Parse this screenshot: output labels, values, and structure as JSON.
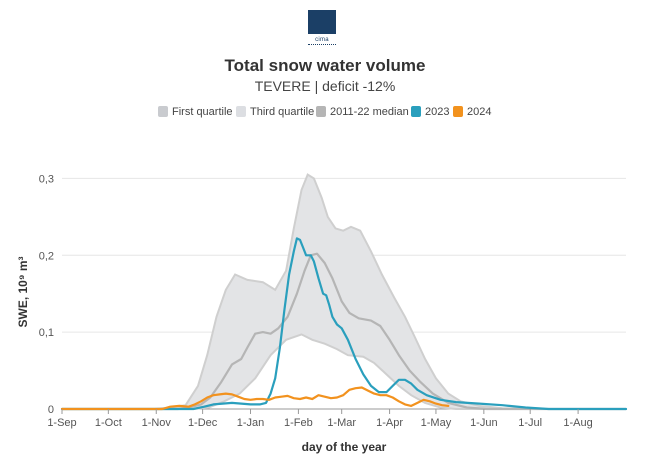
{
  "logo": {
    "text": "cima",
    "subtext": "RESEARCH FOUNDATION"
  },
  "chart_data": {
    "type": "area",
    "title": "Total snow water volume",
    "subtitle": "TEVERE | deficit -12%",
    "xlabel": "day of the year",
    "ylabel": "SWE, 10⁹ m³",
    "ylim": [
      0,
      0.35
    ],
    "xlim": [
      0,
      365
    ],
    "y_ticks": [
      {
        "value": 0,
        "label": "0"
      },
      {
        "value": 0.1,
        "label": "0,1"
      },
      {
        "value": 0.2,
        "label": "0,2"
      },
      {
        "value": 0.3,
        "label": "0,3"
      }
    ],
    "x_ticks": [
      {
        "day": 0,
        "label": "1-Sep"
      },
      {
        "day": 30,
        "label": "1-Oct"
      },
      {
        "day": 61,
        "label": "1-Nov"
      },
      {
        "day": 91,
        "label": "1-Dec"
      },
      {
        "day": 122,
        "label": "1-Jan"
      },
      {
        "day": 153,
        "label": "1-Feb"
      },
      {
        "day": 181,
        "label": "1-Mar"
      },
      {
        "day": 212,
        "label": "1-Apr"
      },
      {
        "day": 242,
        "label": "1-May"
      },
      {
        "day": 273,
        "label": "1-Jun"
      },
      {
        "day": 303,
        "label": "1-Jul"
      },
      {
        "day": 334,
        "label": "1-Aug"
      }
    ],
    "legend": [
      {
        "key": "q1",
        "label": "First quartile",
        "color": "#c9cbcf"
      },
      {
        "key": "q3",
        "label": "Third quartile",
        "color": "#dcdee2"
      },
      {
        "key": "median",
        "label": "2011-22 median",
        "color": "#b5b5b5"
      },
      {
        "key": "y2023",
        "label": "2023",
        "color": "#2a9fbd"
      },
      {
        "key": "y2024",
        "label": "2024",
        "color": "#f2921e"
      }
    ],
    "series": [
      {
        "key": "q3",
        "name": "Third quartile",
        "color": "#cccccc",
        "points": [
          [
            0,
            0
          ],
          [
            60,
            0
          ],
          [
            70,
            0.002
          ],
          [
            80,
            0.005
          ],
          [
            88,
            0.03
          ],
          [
            94,
            0.07
          ],
          [
            100,
            0.12
          ],
          [
            106,
            0.155
          ],
          [
            112,
            0.175
          ],
          [
            120,
            0.168
          ],
          [
            130,
            0.165
          ],
          [
            138,
            0.155
          ],
          [
            145,
            0.18
          ],
          [
            150,
            0.235
          ],
          [
            155,
            0.285
          ],
          [
            159,
            0.305
          ],
          [
            163,
            0.3
          ],
          [
            168,
            0.275
          ],
          [
            172,
            0.25
          ],
          [
            177,
            0.235
          ],
          [
            182,
            0.232
          ],
          [
            187,
            0.237
          ],
          [
            193,
            0.232
          ],
          [
            200,
            0.205
          ],
          [
            207,
            0.175
          ],
          [
            215,
            0.145
          ],
          [
            222,
            0.12
          ],
          [
            228,
            0.095
          ],
          [
            235,
            0.065
          ],
          [
            242,
            0.04
          ],
          [
            250,
            0.02
          ],
          [
            258,
            0.01
          ],
          [
            270,
            0.004
          ],
          [
            285,
            0.001
          ],
          [
            300,
            0
          ],
          [
            365,
            0
          ]
        ]
      },
      {
        "key": "q1",
        "name": "First quartile",
        "color": "#cccccc",
        "points": [
          [
            0,
            0
          ],
          [
            85,
            0
          ],
          [
            95,
            0.002
          ],
          [
            105,
            0.01
          ],
          [
            115,
            0.02
          ],
          [
            125,
            0.04
          ],
          [
            135,
            0.07
          ],
          [
            145,
            0.09
          ],
          [
            155,
            0.097
          ],
          [
            162,
            0.09
          ],
          [
            170,
            0.085
          ],
          [
            178,
            0.078
          ],
          [
            185,
            0.07
          ],
          [
            195,
            0.068
          ],
          [
            202,
            0.06
          ],
          [
            210,
            0.045
          ],
          [
            218,
            0.03
          ],
          [
            226,
            0.018
          ],
          [
            235,
            0.008
          ],
          [
            245,
            0.002
          ],
          [
            255,
            0
          ],
          [
            365,
            0
          ]
        ]
      },
      {
        "key": "median",
        "name": "2011-22 median",
        "color": "#b5b5b5",
        "points": [
          [
            0,
            0
          ],
          [
            75,
            0
          ],
          [
            82,
            0.002
          ],
          [
            90,
            0.006
          ],
          [
            96,
            0.015
          ],
          [
            103,
            0.035
          ],
          [
            110,
            0.058
          ],
          [
            116,
            0.065
          ],
          [
            120,
            0.08
          ],
          [
            125,
            0.098
          ],
          [
            130,
            0.1
          ],
          [
            135,
            0.098
          ],
          [
            140,
            0.105
          ],
          [
            146,
            0.12
          ],
          [
            152,
            0.15
          ],
          [
            157,
            0.18
          ],
          [
            161,
            0.2
          ],
          [
            165,
            0.202
          ],
          [
            170,
            0.19
          ],
          [
            175,
            0.17
          ],
          [
            181,
            0.14
          ],
          [
            186,
            0.125
          ],
          [
            192,
            0.118
          ],
          [
            200,
            0.115
          ],
          [
            206,
            0.108
          ],
          [
            212,
            0.09
          ],
          [
            218,
            0.07
          ],
          [
            225,
            0.05
          ],
          [
            232,
            0.035
          ],
          [
            240,
            0.02
          ],
          [
            250,
            0.008
          ],
          [
            262,
            0.002
          ],
          [
            275,
            0
          ],
          [
            365,
            0
          ]
        ]
      },
      {
        "key": "y2023",
        "name": "2023",
        "color": "#2a9fbd",
        "points": [
          [
            0,
            0
          ],
          [
            85,
            0
          ],
          [
            92,
            0.003
          ],
          [
            98,
            0.006
          ],
          [
            104,
            0.007
          ],
          [
            110,
            0.008
          ],
          [
            116,
            0.007
          ],
          [
            122,
            0.006
          ],
          [
            128,
            0.006
          ],
          [
            132,
            0.008
          ],
          [
            135,
            0.02
          ],
          [
            138,
            0.04
          ],
          [
            141,
            0.08
          ],
          [
            144,
            0.13
          ],
          [
            147,
            0.175
          ],
          [
            150,
            0.205
          ],
          [
            152,
            0.222
          ],
          [
            154,
            0.22
          ],
          [
            156,
            0.21
          ],
          [
            158,
            0.2
          ],
          [
            161,
            0.2
          ],
          [
            163,
            0.192
          ],
          [
            166,
            0.17
          ],
          [
            169,
            0.15
          ],
          [
            171,
            0.148
          ],
          [
            173,
            0.135
          ],
          [
            175,
            0.12
          ],
          [
            178,
            0.11
          ],
          [
            181,
            0.105
          ],
          [
            185,
            0.09
          ],
          [
            190,
            0.065
          ],
          [
            195,
            0.045
          ],
          [
            200,
            0.03
          ],
          [
            205,
            0.022
          ],
          [
            210,
            0.022
          ],
          [
            214,
            0.03
          ],
          [
            218,
            0.038
          ],
          [
            222,
            0.038
          ],
          [
            226,
            0.033
          ],
          [
            230,
            0.025
          ],
          [
            236,
            0.018
          ],
          [
            245,
            0.012
          ],
          [
            255,
            0.009
          ],
          [
            270,
            0.007
          ],
          [
            285,
            0.005
          ],
          [
            300,
            0.002
          ],
          [
            315,
            0
          ],
          [
            365,
            0
          ]
        ]
      },
      {
        "key": "y2024",
        "name": "2024",
        "color": "#f2921e",
        "points": [
          [
            0,
            0
          ],
          [
            65,
            0
          ],
          [
            70,
            0.003
          ],
          [
            76,
            0.004
          ],
          [
            82,
            0.003
          ],
          [
            86,
            0.006
          ],
          [
            90,
            0.01
          ],
          [
            94,
            0.015
          ],
          [
            98,
            0.018
          ],
          [
            102,
            0.019
          ],
          [
            106,
            0.02
          ],
          [
            110,
            0.019
          ],
          [
            114,
            0.016
          ],
          [
            118,
            0.013
          ],
          [
            122,
            0.012
          ],
          [
            126,
            0.013
          ],
          [
            130,
            0.013
          ],
          [
            134,
            0.012
          ],
          [
            138,
            0.015
          ],
          [
            142,
            0.016
          ],
          [
            146,
            0.017
          ],
          [
            150,
            0.014
          ],
          [
            154,
            0.013
          ],
          [
            158,
            0.015
          ],
          [
            162,
            0.013
          ],
          [
            166,
            0.018
          ],
          [
            170,
            0.016
          ],
          [
            174,
            0.014
          ],
          [
            178,
            0.015
          ],
          [
            182,
            0.018
          ],
          [
            186,
            0.025
          ],
          [
            190,
            0.027
          ],
          [
            194,
            0.028
          ],
          [
            198,
            0.024
          ],
          [
            202,
            0.02
          ],
          [
            206,
            0.018
          ],
          [
            210,
            0.018
          ],
          [
            214,
            0.015
          ],
          [
            218,
            0.01
          ],
          [
            222,
            0.006
          ],
          [
            226,
            0.004
          ],
          [
            230,
            0.008
          ],
          [
            234,
            0.012
          ],
          [
            238,
            0.01
          ],
          [
            242,
            0.007
          ],
          [
            246,
            0.005
          ],
          [
            250,
            0.004
          ]
        ]
      }
    ]
  }
}
